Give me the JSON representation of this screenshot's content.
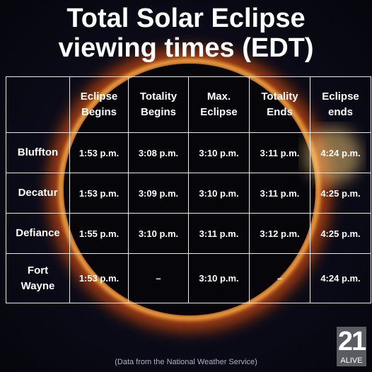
{
  "title": {
    "lines": [
      "Total Solar Eclipse",
      "viewing times (EDT)"
    ]
  },
  "table": {
    "headers": [
      "Eclipse Begins",
      "Totality Begins",
      "Max. Eclipse",
      "Totality Ends",
      "Eclipse ends"
    ],
    "rows": [
      {
        "city": "Bluffton",
        "times": [
          "1:53 p.m.",
          "3:08 p.m.",
          "3:10 p.m.",
          "3:11 p.m.",
          "4:24 p.m."
        ]
      },
      {
        "city": "Decatur",
        "times": [
          "1:53 p.m.",
          "3:09 p.m.",
          "3:10 p.m.",
          "3:11 p.m.",
          "4:25 p.m."
        ]
      },
      {
        "city": "Defiance",
        "times": [
          "1:55 p.m.",
          "3:10 p.m.",
          "3:11 p.m.",
          "3:12 p.m.",
          "4:25 p.m."
        ]
      },
      {
        "city": "Fort Wayne",
        "times": [
          "1:53 p.m.",
          "–",
          "3:10 p.m.",
          "–",
          "4:24 p.m."
        ]
      }
    ]
  },
  "footer": {
    "source": "(Data from the National Weather Service)"
  },
  "logo": {
    "number": "21",
    "word": "ALIVE"
  }
}
